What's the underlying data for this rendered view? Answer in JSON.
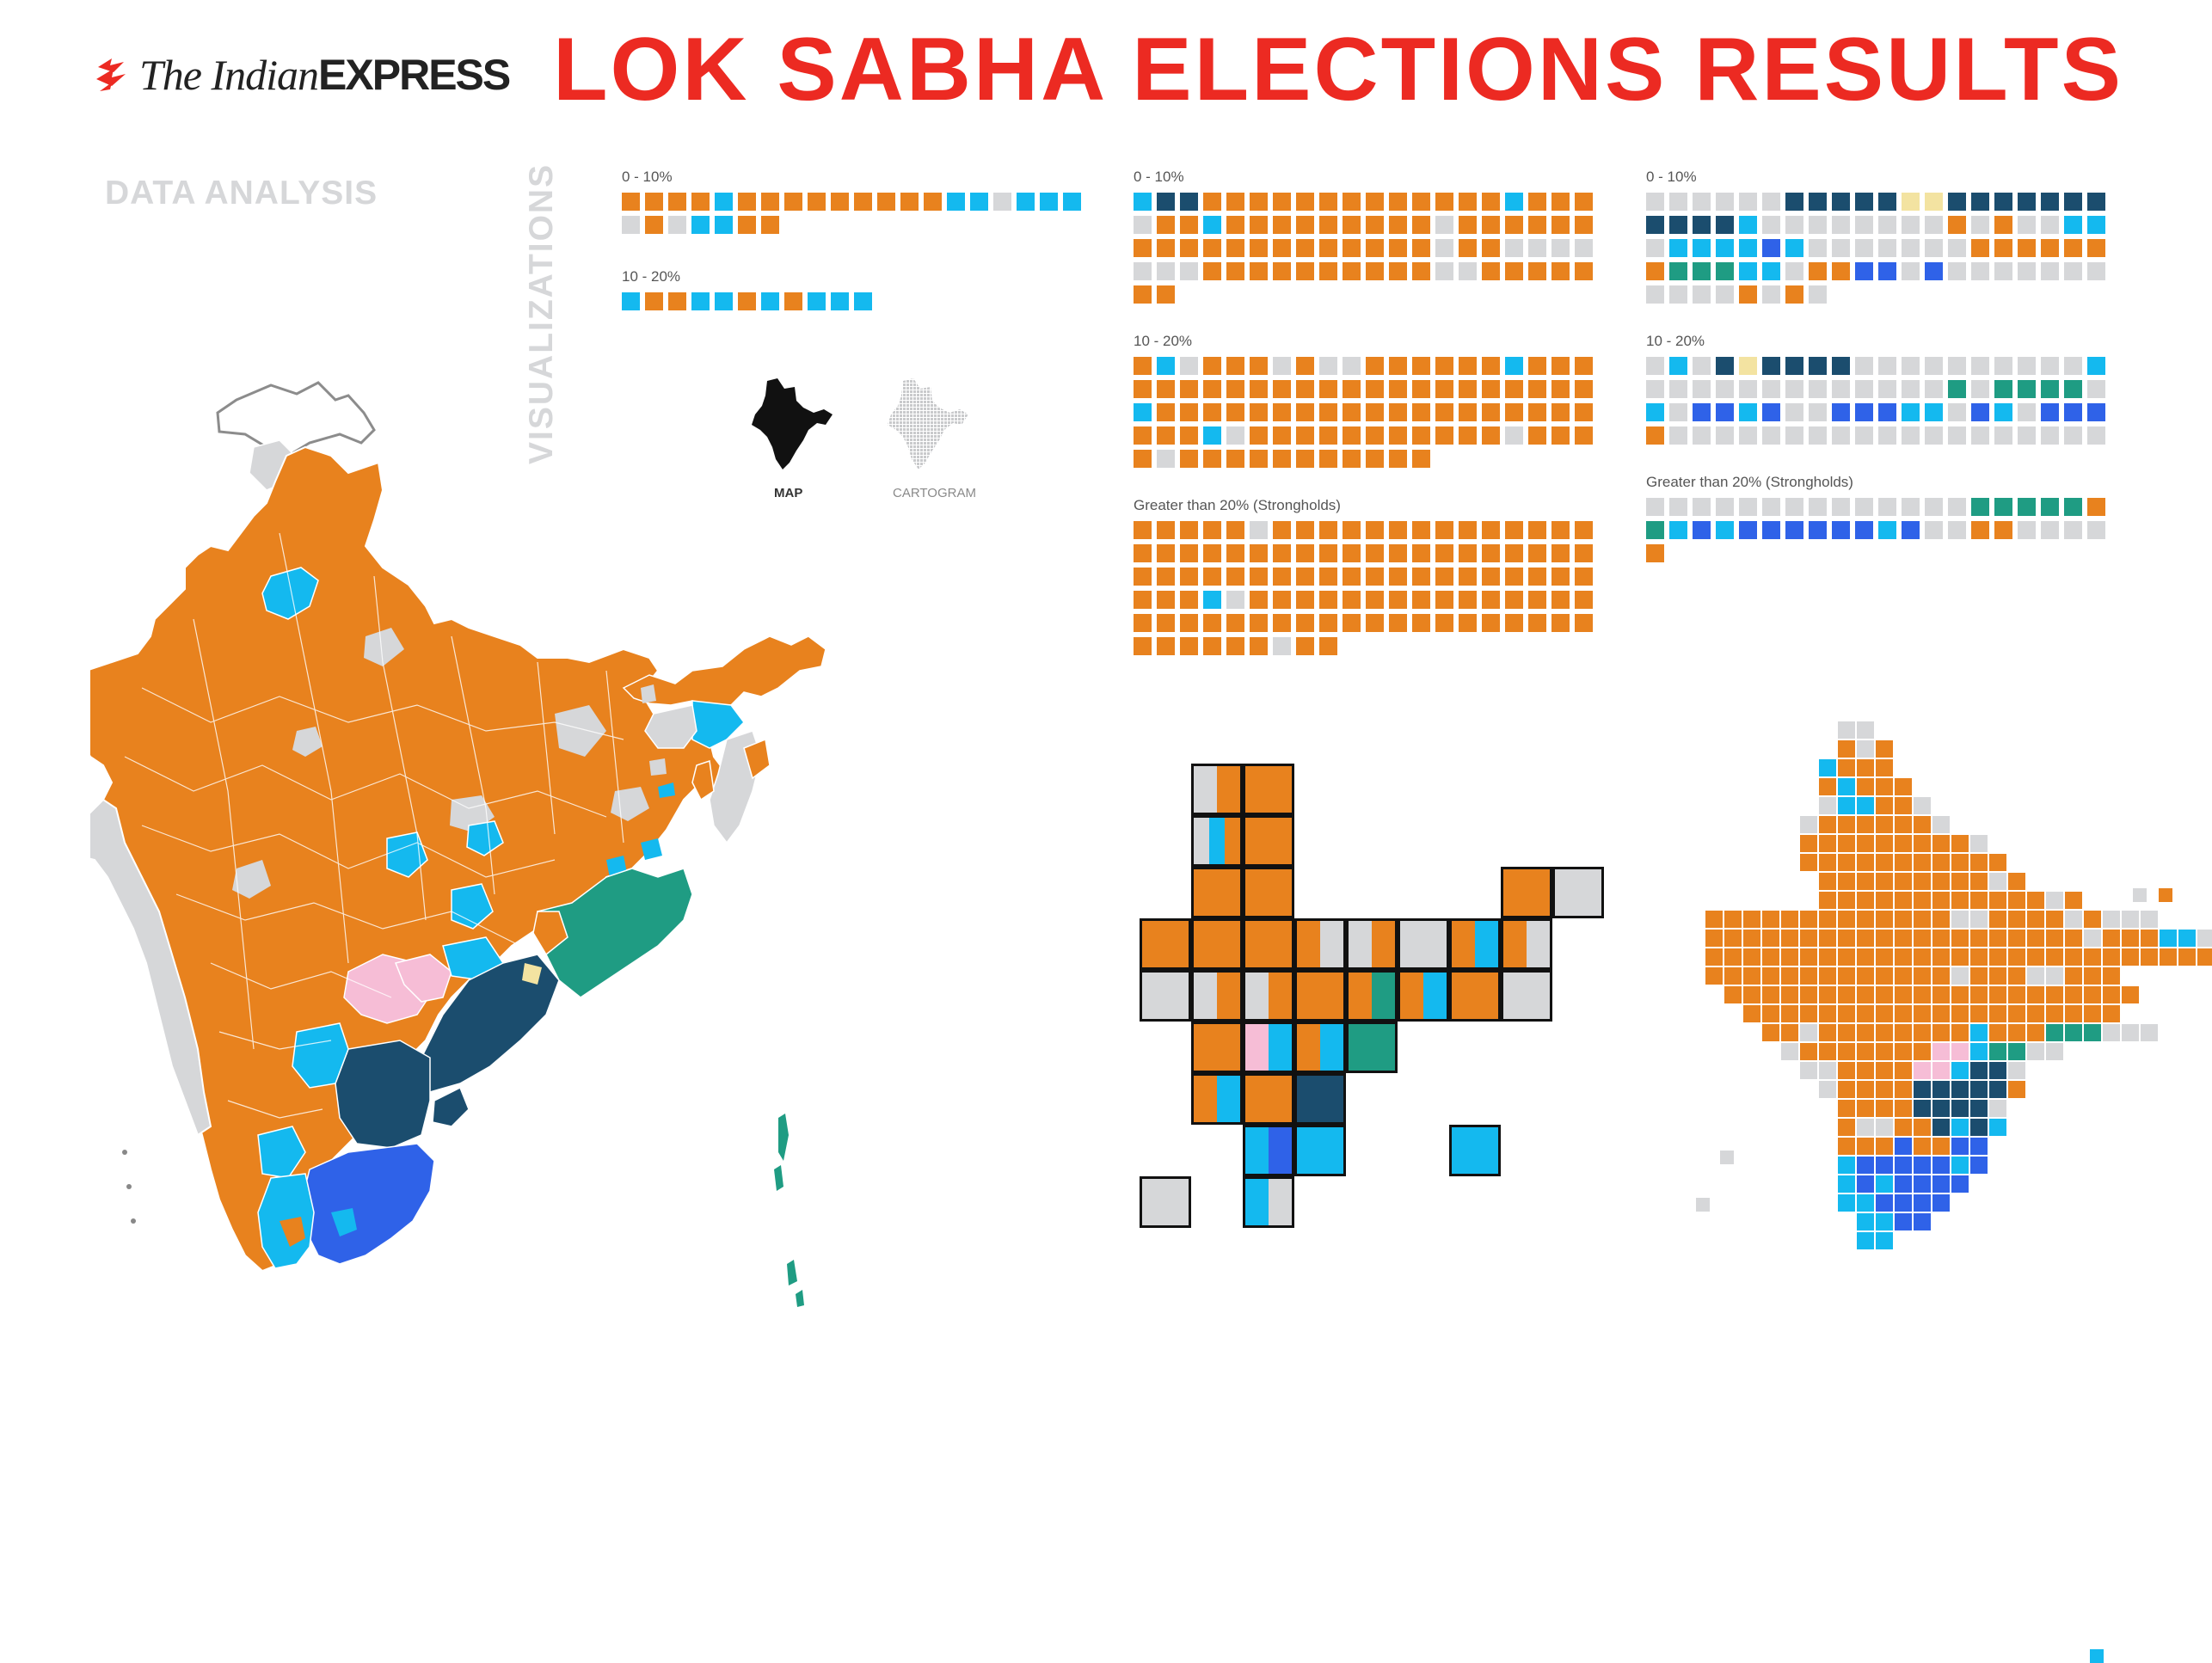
{
  "brand": {
    "logo_italic": "The Indian",
    "logo_bold": "EXPRESS"
  },
  "title": "LOK SABHA ELECTIONS RESULTS",
  "section_left": "DATA ANALYSIS",
  "section_vertical": "VISUALIZATIONS",
  "view_toggle": {
    "map_label": "MAP",
    "cartogram_label": "CARTOGRAM",
    "selected": "MAP"
  },
  "colors": {
    "orange": "#e8821e",
    "cyan": "#14b9ef",
    "grey": "#d6d7d9",
    "navy": "#1b4d6e",
    "teal": "#1f9c83",
    "blue": "#2f62e8",
    "pink": "#f6bdd6",
    "cream": "#f3e3a1",
    "red": "#ec2a22"
  },
  "margin_groups": [
    {
      "groups": [
        {
          "label": "0 - 10%",
          "seq": "OOOOCOOOOOOOOOCCGCCCGOGCCOO"
        },
        {
          "label": "10 - 20%",
          "seq": "COOCCOCOCCC"
        }
      ]
    },
    {
      "groups": [
        {
          "label": "0 - 10%",
          "seq": "CNNOOOOOOOOOOOOOCOOOGOOCOOOOOOOOOGOOOOOOOOOOOOOOOOOOOGOOGGGGGGGOOOOOOOOOOGGOOOOOOO"
        },
        {
          "label": "10 - 20%",
          "seq": "OCGOOOGOGGOOOOOOCOOOOOOOOOOOOOOOOOOOOOOOCOOOOOOOOOOOOOOOOOOOOOOCGOOOOOOOOOOOGOOOOGOOOOOOOOOOO"
        },
        {
          "label": "Greater than 20% (Strongholds)",
          "seq": "OOOOOGOOOOOOOOOOOOOOOOOOOOOOOOOOOOOOOOOOOOOOOOOOOOOOOOOOOOOOOOOCGOOOOOOOOOOOOOOOOOOOOOOOOOOOOOOOOOOOOOOOOOGOO"
        }
      ]
    },
    {
      "groups": [
        {
          "label": "0 - 10%",
          "seq": "GGGGGGNNNNNPPNNNNNNNNNNNCGGGGGGGGOGOGGCCGCCCCBCGGGGGGGOOOOOOOTTTCCGOOBBGBGGGGGGGGGGGOGOG"
        },
        {
          "label": "10 - 20%",
          "seq": "GCGNPNNNNGGGGGGGGGGCGGGGGGGGGGGGGTGTTTTGCGBBCBGGBBBCCGBCGBBBOGGGGGGGGGGGGGGGGGGG"
        },
        {
          "label": "Greater than 20% (Strongholds)",
          "seq": "GGGGGGGGGGGGGGTTTTTOTCBCBBBBBBCBGGOOGGGGO"
        }
      ]
    }
  ]
}
